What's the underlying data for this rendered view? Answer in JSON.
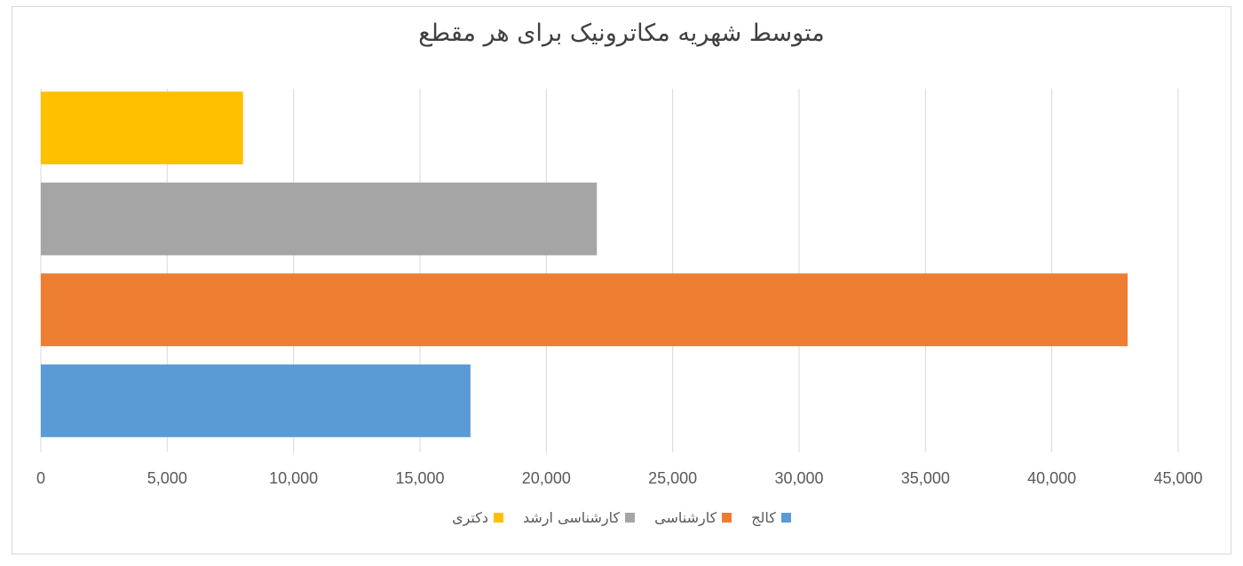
{
  "chart_data": {
    "type": "bar",
    "orientation": "horizontal",
    "title": "متوسط شهریه مکاترونیک برای هر مقطع",
    "categories": [
      "کالج",
      "کارشناسی",
      "کارشناسی ارشد",
      "دکتری"
    ],
    "values": [
      17000,
      43000,
      22000,
      8000
    ],
    "colors": [
      "#5b9bd5",
      "#ed7d31",
      "#a5a5a5",
      "#ffc000"
    ],
    "xlim": [
      0,
      45000
    ],
    "xticks": [
      "0",
      "5,000",
      "10,000",
      "15,000",
      "20,000",
      "25,000",
      "30,000",
      "35,000",
      "40,000",
      "45,000"
    ],
    "grid": true,
    "legend_position": "bottom",
    "xlabel": "",
    "ylabel": ""
  },
  "legend": [
    {
      "label": "دکتری",
      "color": "#ffc000"
    },
    {
      "label": "کارشناسی ارشد",
      "color": "#a5a5a5"
    },
    {
      "label": "کارشناسی",
      "color": "#ed7d31"
    },
    {
      "label": "کالج",
      "color": "#5b9bd5"
    }
  ]
}
